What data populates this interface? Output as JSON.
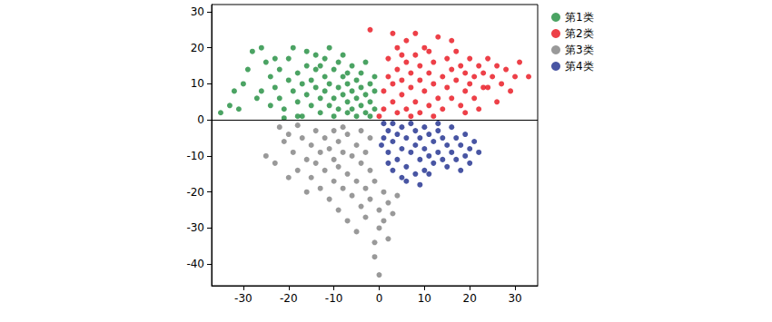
{
  "chart_data": {
    "type": "scatter",
    "xlim": [
      -37,
      35
    ],
    "xticks": [
      -30,
      -20,
      -10,
      0,
      10,
      20,
      30
    ],
    "ylim": [
      -46,
      32
    ],
    "yticks": [
      -40,
      -30,
      -20,
      -10,
      0,
      10,
      20,
      30
    ],
    "hline": 0,
    "legend": "upper right",
    "marker": "circle",
    "series": [
      {
        "name": "第1类",
        "color": "#1e8c3c",
        "values": [
          [
            -35,
            2
          ],
          [
            -33,
            4
          ],
          [
            -32,
            8
          ],
          [
            -30,
            10
          ],
          [
            -29,
            14
          ],
          [
            -28,
            19
          ],
          [
            -26,
            20
          ],
          [
            -25,
            16
          ],
          [
            -24,
            12
          ],
          [
            -23,
            9
          ],
          [
            -22,
            6
          ],
          [
            -22,
            14
          ],
          [
            -21,
            3
          ],
          [
            -20,
            11
          ],
          [
            -20,
            17
          ],
          [
            -19,
            8
          ],
          [
            -18,
            5
          ],
          [
            -18,
            13
          ],
          [
            -17,
            10
          ],
          [
            -17,
            1
          ],
          [
            -16,
            15
          ],
          [
            -16,
            7
          ],
          [
            -15,
            4
          ],
          [
            -15,
            11
          ],
          [
            -14,
            14
          ],
          [
            -14,
            9
          ],
          [
            -13,
            2
          ],
          [
            -13,
            6
          ],
          [
            -12,
            12
          ],
          [
            -12,
            8
          ],
          [
            -12,
            17
          ],
          [
            -11,
            4
          ],
          [
            -11,
            10
          ],
          [
            -10,
            1
          ],
          [
            -10,
            6
          ],
          [
            -10,
            14
          ],
          [
            -9,
            9
          ],
          [
            -9,
            3
          ],
          [
            -8,
            12
          ],
          [
            -8,
            7
          ],
          [
            -8,
            18
          ],
          [
            -7,
            2
          ],
          [
            -7,
            5
          ],
          [
            -7,
            10
          ],
          [
            -6,
            8
          ],
          [
            -6,
            15
          ],
          [
            -6,
            3
          ],
          [
            -5,
            6
          ],
          [
            -5,
            11
          ],
          [
            -5,
            1
          ],
          [
            -4,
            4
          ],
          [
            -4,
            9
          ],
          [
            -4,
            13
          ],
          [
            -3,
            2
          ],
          [
            -3,
            7
          ],
          [
            -3,
            16
          ],
          [
            -2,
            5
          ],
          [
            -2,
            10
          ],
          [
            -2,
            1
          ],
          [
            -1,
            3
          ],
          [
            -1,
            8
          ],
          [
            -1,
            12
          ],
          [
            -19,
            20
          ],
          [
            -23,
            17
          ],
          [
            -27,
            6
          ],
          [
            -31,
            3
          ],
          [
            -16,
            19
          ],
          [
            -9,
            16
          ],
          [
            -11,
            20
          ],
          [
            -14,
            18
          ],
          [
            -21,
            0.5
          ],
          [
            -26,
            8
          ],
          [
            -13,
            15
          ],
          [
            -7,
            13
          ],
          [
            -24,
            4
          ],
          [
            -18,
            1
          ]
        ]
      },
      {
        "name": "第2类",
        "color": "#e8101a",
        "values": [
          [
            -2,
            25
          ],
          [
            1,
            3
          ],
          [
            1,
            8
          ],
          [
            2,
            12
          ],
          [
            2,
            17
          ],
          [
            3,
            5
          ],
          [
            3,
            10
          ],
          [
            4,
            2
          ],
          [
            4,
            14
          ],
          [
            4,
            20
          ],
          [
            5,
            7
          ],
          [
            5,
            11
          ],
          [
            6,
            3
          ],
          [
            6,
            16
          ],
          [
            6,
            22
          ],
          [
            7,
            9
          ],
          [
            7,
            13
          ],
          [
            8,
            5
          ],
          [
            8,
            18
          ],
          [
            9,
            11
          ],
          [
            9,
            2
          ],
          [
            9,
            15
          ],
          [
            10,
            8
          ],
          [
            10,
            20
          ],
          [
            11,
            4
          ],
          [
            11,
            13
          ],
          [
            12,
            10
          ],
          [
            12,
            16
          ],
          [
            13,
            6
          ],
          [
            13,
            23
          ],
          [
            14,
            12
          ],
          [
            14,
            3
          ],
          [
            15,
            9
          ],
          [
            15,
            17
          ],
          [
            16,
            14
          ],
          [
            16,
            6
          ],
          [
            17,
            19
          ],
          [
            17,
            11
          ],
          [
            18,
            4
          ],
          [
            18,
            15
          ],
          [
            19,
            8
          ],
          [
            19,
            13
          ],
          [
            20,
            17
          ],
          [
            20,
            10
          ],
          [
            21,
            6
          ],
          [
            21,
            12
          ],
          [
            22,
            15
          ],
          [
            22,
            3
          ],
          [
            23,
            9
          ],
          [
            23,
            13
          ],
          [
            24,
            9
          ],
          [
            24,
            17
          ],
          [
            25,
            12
          ],
          [
            26,
            5
          ],
          [
            26,
            15
          ],
          [
            27,
            10
          ],
          [
            28,
            14
          ],
          [
            29,
            8
          ],
          [
            30,
            12
          ],
          [
            31,
            16
          ],
          [
            33,
            12
          ],
          [
            3,
            24
          ],
          [
            8,
            24
          ],
          [
            11,
            19
          ],
          [
            5,
            18
          ],
          [
            0,
            1
          ],
          [
            16,
            22
          ],
          [
            19,
            2
          ],
          [
            12,
            1
          ],
          [
            7,
            1
          ]
        ]
      },
      {
        "name": "第3类",
        "color": "#7f7f7f",
        "values": [
          [
            -25,
            -10
          ],
          [
            -23,
            -12
          ],
          [
            -21,
            -6
          ],
          [
            -20,
            -4
          ],
          [
            -19,
            -9
          ],
          [
            -18,
            -14
          ],
          [
            -17,
            -5
          ],
          [
            -16,
            -11
          ],
          [
            -15,
            -7
          ],
          [
            -15,
            -16
          ],
          [
            -14,
            -3
          ],
          [
            -14,
            -12
          ],
          [
            -13,
            -9
          ],
          [
            -13,
            -19
          ],
          [
            -12,
            -5
          ],
          [
            -12,
            -14
          ],
          [
            -11,
            -8
          ],
          [
            -11,
            -22
          ],
          [
            -10,
            -3
          ],
          [
            -10,
            -11
          ],
          [
            -10,
            -17
          ],
          [
            -9,
            -6
          ],
          [
            -9,
            -13
          ],
          [
            -9,
            -25
          ],
          [
            -8,
            -9
          ],
          [
            -8,
            -19
          ],
          [
            -7,
            -4
          ],
          [
            -7,
            -15
          ],
          [
            -7,
            -28
          ],
          [
            -6,
            -10
          ],
          [
            -6,
            -21
          ],
          [
            -5,
            -7
          ],
          [
            -5,
            -17
          ],
          [
            -5,
            -31
          ],
          [
            -4,
            -12
          ],
          [
            -4,
            -24
          ],
          [
            -3,
            -9
          ],
          [
            -3,
            -19
          ],
          [
            -3,
            -27
          ],
          [
            -2,
            -14
          ],
          [
            -2,
            -22
          ],
          [
            -1,
            -17
          ],
          [
            -1,
            -34
          ],
          [
            -1,
            -38
          ],
          [
            0,
            -30
          ],
          [
            0,
            -43
          ],
          [
            0,
            -25
          ],
          [
            1,
            -20
          ],
          [
            1,
            -28
          ],
          [
            2,
            -33
          ],
          [
            2,
            -23
          ],
          [
            3,
            -26
          ],
          [
            4,
            -21
          ],
          [
            -16,
            -20
          ],
          [
            -20,
            -16
          ],
          [
            -22,
            -2
          ],
          [
            -8,
            -2
          ],
          [
            -4,
            -3
          ],
          [
            -2,
            -5
          ],
          [
            -18,
            -1.5
          ]
        ]
      },
      {
        "name": "第4类",
        "color": "#1a2a8c",
        "values": [
          [
            1,
            -1
          ],
          [
            1,
            -5
          ],
          [
            2,
            -3
          ],
          [
            2,
            -9
          ],
          [
            3,
            -1
          ],
          [
            3,
            -6
          ],
          [
            4,
            -4
          ],
          [
            4,
            -11
          ],
          [
            5,
            -2
          ],
          [
            5,
            -8
          ],
          [
            6,
            -5
          ],
          [
            6,
            -13
          ],
          [
            7,
            -1
          ],
          [
            7,
            -9
          ],
          [
            8,
            -3
          ],
          [
            8,
            -7
          ],
          [
            8,
            -15
          ],
          [
            9,
            -5
          ],
          [
            9,
            -11
          ],
          [
            10,
            -2
          ],
          [
            10,
            -8
          ],
          [
            10,
            -14
          ],
          [
            11,
            -15
          ],
          [
            11,
            -4
          ],
          [
            11,
            -10
          ],
          [
            12,
            -6
          ],
          [
            12,
            -12
          ],
          [
            13,
            -3
          ],
          [
            13,
            -9
          ],
          [
            14,
            -5
          ],
          [
            14,
            -11
          ],
          [
            15,
            -13
          ],
          [
            15,
            -7
          ],
          [
            16,
            -2
          ],
          [
            16,
            -9
          ],
          [
            17,
            -5
          ],
          [
            17,
            -11
          ],
          [
            18,
            -7
          ],
          [
            19,
            -4
          ],
          [
            19,
            -10
          ],
          [
            20,
            -8
          ],
          [
            21,
            -6
          ],
          [
            22,
            -9
          ],
          [
            20,
            -12
          ],
          [
            6,
            -17
          ],
          [
            3,
            -14
          ],
          [
            5,
            -16
          ],
          [
            9,
            -18
          ],
          [
            2,
            -12
          ],
          [
            13,
            -1
          ],
          [
            18,
            -14
          ],
          [
            0.5,
            -7
          ]
        ]
      }
    ]
  }
}
